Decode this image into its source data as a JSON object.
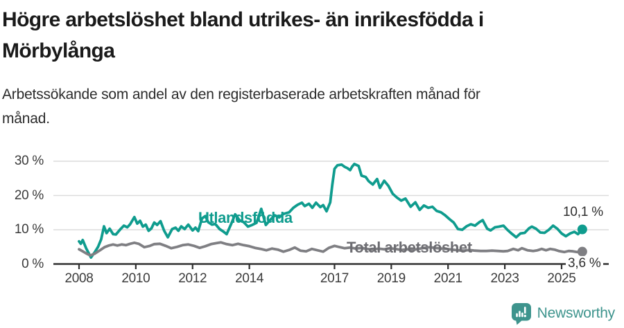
{
  "header": {
    "title_lines": [
      "Högre arbetslöshet bland utrikes- än inrikesfödda i",
      "Mörbylånga"
    ],
    "subtitle_lines": [
      "Arbetssökande som andel av den registerbaserade arbetskraften månad för",
      "månad."
    ]
  },
  "footer": {
    "brand": "Newsworthy",
    "logo_icon": "speech-bubble-bar-chart"
  },
  "colors": {
    "series_teal": "#0f9c8e",
    "series_gray": "#7f7f83",
    "series_label_gray": "#6d6d72",
    "grid": "#dcdcdc",
    "axis": "#2f2f2f",
    "tick_text": "#3a3a3a",
    "value_text": "#2e2e2e",
    "brand_teal": "#3e948d"
  },
  "chart_data": {
    "type": "line",
    "title": "Högre arbetslöshet bland utrikes- än inrikesfödda i Mörbylånga",
    "subtitle": "Arbetssökande som andel av den registerbaserade arbetskraften månad för månad.",
    "xlabel": "",
    "ylabel": "",
    "x_range": [
      2008,
      2025.75
    ],
    "ylim": [
      0,
      32
    ],
    "grid": true,
    "legend_position": "inline-labels",
    "xticks": [
      {
        "value": 2008,
        "label": "2008"
      },
      {
        "value": 2010,
        "label": "2010"
      },
      {
        "value": 2012,
        "label": "2012"
      },
      {
        "value": 2014,
        "label": "2014"
      },
      {
        "value": 2017,
        "label": "2017"
      },
      {
        "value": 2019,
        "label": "2019"
      },
      {
        "value": 2021,
        "label": "2021"
      },
      {
        "value": 2023,
        "label": "2023"
      },
      {
        "value": 2025,
        "label": "2025"
      }
    ],
    "yticks": [
      {
        "value": 0,
        "label": "0 %"
      },
      {
        "value": 10,
        "label": "10 %"
      },
      {
        "value": 20,
        "label": "20 %"
      },
      {
        "value": 30,
        "label": "30 %"
      }
    ],
    "series": [
      {
        "name": "Utlandsfödda",
        "color": "#0f9c8e",
        "end_label": "10,1 %",
        "end_value": 10.1,
        "points": [
          [
            2008.0,
            6.6
          ],
          [
            2008.06,
            5.9
          ],
          [
            2008.13,
            7.0
          ],
          [
            2008.25,
            4.6
          ],
          [
            2008.42,
            1.9
          ],
          [
            2008.55,
            3.4
          ],
          [
            2008.67,
            5.0
          ],
          [
            2008.78,
            7.2
          ],
          [
            2008.88,
            11.0
          ],
          [
            2008.97,
            9.0
          ],
          [
            2009.08,
            10.3
          ],
          [
            2009.2,
            8.7
          ],
          [
            2009.3,
            8.6
          ],
          [
            2009.45,
            10.1
          ],
          [
            2009.58,
            11.2
          ],
          [
            2009.7,
            10.7
          ],
          [
            2009.8,
            11.6
          ],
          [
            2009.95,
            13.7
          ],
          [
            2010.05,
            11.8
          ],
          [
            2010.15,
            12.6
          ],
          [
            2010.25,
            10.9
          ],
          [
            2010.35,
            11.5
          ],
          [
            2010.45,
            9.7
          ],
          [
            2010.55,
            10.4
          ],
          [
            2010.65,
            12.1
          ],
          [
            2010.75,
            11.4
          ],
          [
            2010.87,
            12.5
          ],
          [
            2011.0,
            9.7
          ],
          [
            2011.13,
            7.8
          ],
          [
            2011.28,
            10.2
          ],
          [
            2011.4,
            10.6
          ],
          [
            2011.5,
            9.7
          ],
          [
            2011.6,
            11.0
          ],
          [
            2011.72,
            10.2
          ],
          [
            2011.85,
            11.5
          ],
          [
            2012.0,
            9.8
          ],
          [
            2012.1,
            10.6
          ],
          [
            2012.2,
            9.6
          ],
          [
            2012.33,
            13.3
          ],
          [
            2012.45,
            14.0
          ],
          [
            2012.55,
            12.2
          ],
          [
            2012.68,
            11.5
          ],
          [
            2012.8,
            11.7
          ],
          [
            2012.95,
            10.2
          ],
          [
            2013.08,
            9.5
          ],
          [
            2013.2,
            8.7
          ],
          [
            2013.35,
            11.5
          ],
          [
            2013.5,
            14.5
          ],
          [
            2013.65,
            12.8
          ],
          [
            2013.8,
            12.2
          ],
          [
            2013.95,
            10.9
          ],
          [
            2014.1,
            11.4
          ],
          [
            2014.25,
            12.0
          ],
          [
            2014.42,
            16.1
          ],
          [
            2014.58,
            11.4
          ],
          [
            2014.75,
            13.0
          ],
          [
            2014.9,
            14.2
          ],
          [
            2015.05,
            13.6
          ],
          [
            2015.2,
            14.6
          ],
          [
            2015.4,
            15.1
          ],
          [
            2015.55,
            16.4
          ],
          [
            2015.7,
            17.3
          ],
          [
            2015.85,
            17.9
          ],
          [
            2015.95,
            16.9
          ],
          [
            2016.1,
            17.6
          ],
          [
            2016.22,
            16.4
          ],
          [
            2016.35,
            17.9
          ],
          [
            2016.5,
            16.6
          ],
          [
            2016.6,
            17.2
          ],
          [
            2016.72,
            15.4
          ],
          [
            2016.85,
            18.0
          ],
          [
            2016.92,
            23.0
          ],
          [
            2017.0,
            27.8
          ],
          [
            2017.1,
            28.8
          ],
          [
            2017.25,
            29.0
          ],
          [
            2017.35,
            28.4
          ],
          [
            2017.45,
            28.0
          ],
          [
            2017.55,
            27.4
          ],
          [
            2017.62,
            28.4
          ],
          [
            2017.7,
            29.2
          ],
          [
            2017.85,
            28.6
          ],
          [
            2017.95,
            25.8
          ],
          [
            2018.1,
            25.4
          ],
          [
            2018.2,
            24.2
          ],
          [
            2018.35,
            23.2
          ],
          [
            2018.5,
            24.8
          ],
          [
            2018.6,
            22.2
          ],
          [
            2018.75,
            24.3
          ],
          [
            2018.9,
            22.8
          ],
          [
            2019.05,
            20.5
          ],
          [
            2019.2,
            19.4
          ],
          [
            2019.35,
            18.5
          ],
          [
            2019.5,
            19.1
          ],
          [
            2019.68,
            16.7
          ],
          [
            2019.85,
            18.0
          ],
          [
            2020.0,
            15.8
          ],
          [
            2020.15,
            17.1
          ],
          [
            2020.3,
            16.4
          ],
          [
            2020.45,
            16.7
          ],
          [
            2020.6,
            15.5
          ],
          [
            2020.75,
            15.1
          ],
          [
            2020.9,
            14.2
          ],
          [
            2021.05,
            13.1
          ],
          [
            2021.2,
            12.1
          ],
          [
            2021.35,
            10.2
          ],
          [
            2021.5,
            10.0
          ],
          [
            2021.65,
            11.0
          ],
          [
            2021.8,
            11.6
          ],
          [
            2021.95,
            11.2
          ],
          [
            2022.1,
            12.2
          ],
          [
            2022.22,
            12.8
          ],
          [
            2022.38,
            10.3
          ],
          [
            2022.5,
            9.8
          ],
          [
            2022.65,
            10.7
          ],
          [
            2022.8,
            10.9
          ],
          [
            2022.95,
            11.2
          ],
          [
            2023.1,
            9.9
          ],
          [
            2023.25,
            8.8
          ],
          [
            2023.4,
            7.8
          ],
          [
            2023.55,
            8.9
          ],
          [
            2023.7,
            9.1
          ],
          [
            2023.85,
            10.4
          ],
          [
            2023.95,
            10.9
          ],
          [
            2024.1,
            10.3
          ],
          [
            2024.25,
            9.2
          ],
          [
            2024.4,
            9.1
          ],
          [
            2024.55,
            10.0
          ],
          [
            2024.7,
            11.2
          ],
          [
            2024.85,
            10.3
          ],
          [
            2025.0,
            8.9
          ],
          [
            2025.15,
            8.1
          ],
          [
            2025.3,
            8.9
          ],
          [
            2025.45,
            9.4
          ],
          [
            2025.58,
            8.7
          ],
          [
            2025.73,
            10.1
          ]
        ]
      },
      {
        "name": "Total arbetslöshet",
        "color": "#7f7f83",
        "end_label": "3,6 %",
        "end_value": 3.6,
        "points": [
          [
            2008.0,
            4.3
          ],
          [
            2008.13,
            3.7
          ],
          [
            2008.27,
            3.0
          ],
          [
            2008.4,
            2.5
          ],
          [
            2008.55,
            3.0
          ],
          [
            2008.72,
            3.9
          ],
          [
            2008.9,
            4.9
          ],
          [
            2009.05,
            5.4
          ],
          [
            2009.2,
            5.7
          ],
          [
            2009.35,
            5.4
          ],
          [
            2009.5,
            5.7
          ],
          [
            2009.65,
            5.5
          ],
          [
            2009.8,
            5.9
          ],
          [
            2009.95,
            6.2
          ],
          [
            2010.1,
            5.9
          ],
          [
            2010.3,
            4.9
          ],
          [
            2010.5,
            5.3
          ],
          [
            2010.65,
            5.8
          ],
          [
            2010.85,
            5.9
          ],
          [
            2011.05,
            5.3
          ],
          [
            2011.25,
            4.6
          ],
          [
            2011.45,
            5.0
          ],
          [
            2011.65,
            5.5
          ],
          [
            2011.85,
            5.7
          ],
          [
            2012.05,
            5.3
          ],
          [
            2012.25,
            4.7
          ],
          [
            2012.45,
            5.2
          ],
          [
            2012.65,
            5.8
          ],
          [
            2012.85,
            6.1
          ],
          [
            2013.0,
            6.3
          ],
          [
            2013.2,
            5.8
          ],
          [
            2013.4,
            5.5
          ],
          [
            2013.6,
            5.9
          ],
          [
            2013.8,
            5.5
          ],
          [
            2014.0,
            5.2
          ],
          [
            2014.2,
            4.7
          ],
          [
            2014.4,
            4.4
          ],
          [
            2014.6,
            4.0
          ],
          [
            2014.8,
            4.5
          ],
          [
            2015.0,
            4.2
          ],
          [
            2015.2,
            3.6
          ],
          [
            2015.4,
            4.1
          ],
          [
            2015.6,
            4.8
          ],
          [
            2015.8,
            3.9
          ],
          [
            2016.0,
            3.7
          ],
          [
            2016.2,
            4.4
          ],
          [
            2016.4,
            4.0
          ],
          [
            2016.6,
            3.6
          ],
          [
            2016.8,
            4.7
          ],
          [
            2017.0,
            5.3
          ],
          [
            2017.15,
            5.0
          ],
          [
            2017.35,
            4.6
          ],
          [
            2017.55,
            4.8
          ],
          [
            2017.75,
            4.5
          ],
          [
            2017.95,
            4.7
          ],
          [
            2018.15,
            4.4
          ],
          [
            2018.35,
            4.2
          ],
          [
            2018.55,
            4.5
          ],
          [
            2018.75,
            4.3
          ],
          [
            2018.95,
            4.6
          ],
          [
            2019.15,
            4.4
          ],
          [
            2019.35,
            4.1
          ],
          [
            2019.55,
            4.3
          ],
          [
            2019.75,
            4.1
          ],
          [
            2019.95,
            4.4
          ],
          [
            2020.15,
            4.7
          ],
          [
            2020.35,
            4.9
          ],
          [
            2020.55,
            4.7
          ],
          [
            2020.75,
            4.5
          ],
          [
            2020.95,
            4.4
          ],
          [
            2021.15,
            4.2
          ],
          [
            2021.35,
            4.0
          ],
          [
            2021.55,
            3.9
          ],
          [
            2021.75,
            4.1
          ],
          [
            2021.95,
            3.9
          ],
          [
            2022.15,
            3.8
          ],
          [
            2022.35,
            3.8
          ],
          [
            2022.55,
            3.9
          ],
          [
            2022.75,
            3.8
          ],
          [
            2022.95,
            3.7
          ],
          [
            2023.1,
            3.8
          ],
          [
            2023.3,
            4.4
          ],
          [
            2023.47,
            4.0
          ],
          [
            2023.6,
            4.6
          ],
          [
            2023.8,
            4.0
          ],
          [
            2024.0,
            3.8
          ],
          [
            2024.15,
            4.0
          ],
          [
            2024.3,
            4.4
          ],
          [
            2024.45,
            4.0
          ],
          [
            2024.6,
            4.4
          ],
          [
            2024.75,
            4.2
          ],
          [
            2024.9,
            3.8
          ],
          [
            2025.1,
            3.5
          ],
          [
            2025.25,
            3.8
          ],
          [
            2025.4,
            3.7
          ],
          [
            2025.55,
            3.5
          ],
          [
            2025.73,
            3.6
          ]
        ]
      }
    ]
  }
}
